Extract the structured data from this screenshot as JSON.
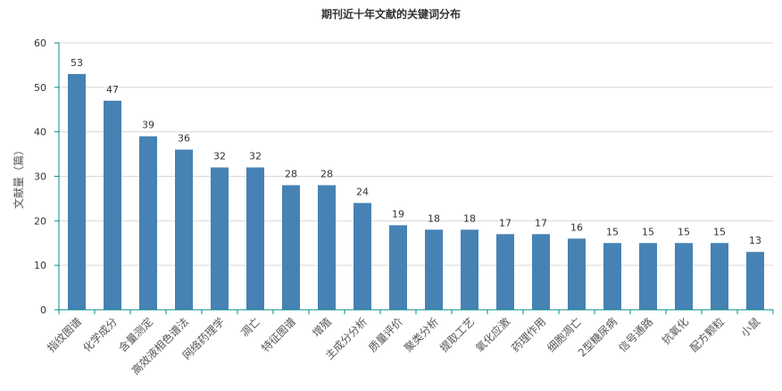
{
  "chart_data": {
    "type": "bar",
    "title": "期刊近十年文献的关键词分布",
    "xlabel": "",
    "ylabel": "文献量（篇）",
    "ylim": [
      0,
      60
    ],
    "yticks": [
      0,
      10,
      20,
      30,
      40,
      50,
      60
    ],
    "grid": true,
    "legend": "none",
    "categories": [
      "指纹图谱",
      "化学成分",
      "含量测定",
      "高效液相色谱法",
      "网络药理学",
      "凋亡",
      "特征图谱",
      "增殖",
      "主成分分析",
      "质量评价",
      "聚类分析",
      "提取工艺",
      "氧化应激",
      "药理作用",
      "细胞凋亡",
      "2型糖尿病",
      "信号通路",
      "抗氧化",
      "配方颗粒",
      "小鼠"
    ],
    "values": [
      53,
      47,
      39,
      36,
      32,
      32,
      28,
      28,
      24,
      19,
      18,
      18,
      17,
      17,
      16,
      15,
      15,
      15,
      15,
      13
    ],
    "colors": {
      "bar": "#4682b4",
      "axis": "#008b8b",
      "grid": "#d9d9d9",
      "text": "#333333",
      "tick_label": "#555555"
    }
  }
}
